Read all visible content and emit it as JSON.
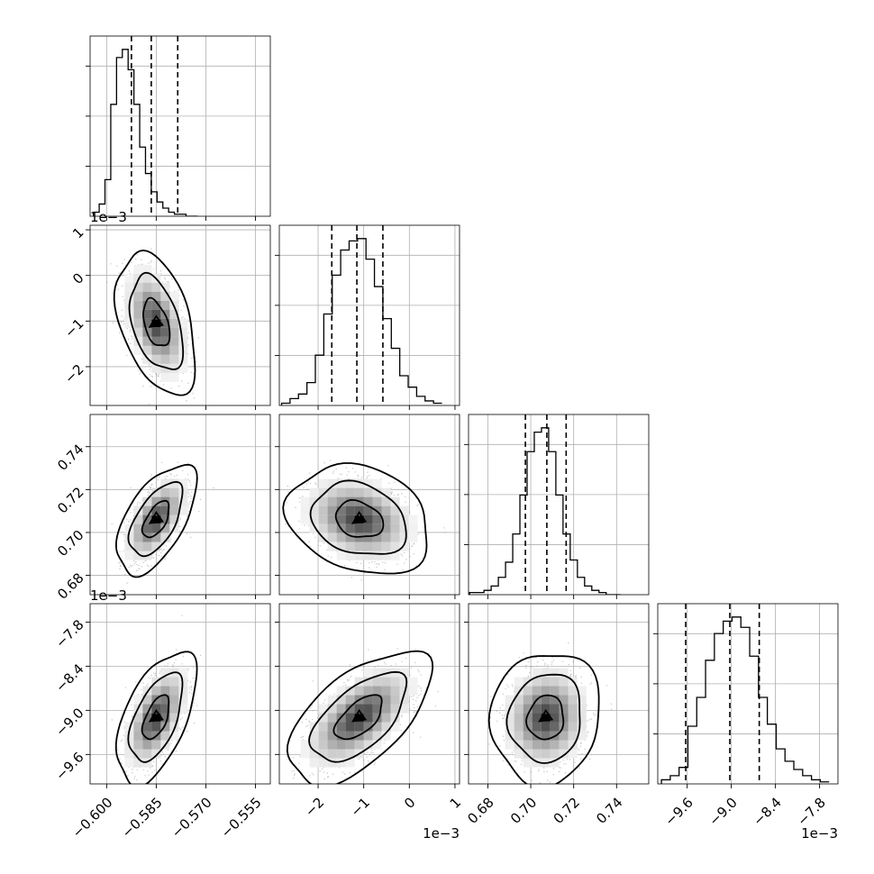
{
  "chart_data": {
    "type": "corner",
    "parameters": [
      {
        "range": [
          -0.605,
          -0.5505
        ],
        "ticks": [
          -0.6,
          -0.585,
          -0.57,
          -0.555
        ],
        "tick_labels": [
          "−0.600",
          "−0.585",
          "−0.570",
          "−0.555"
        ],
        "offset": ""
      },
      {
        "range": [
          -2.85,
          1.1
        ],
        "ticks": [
          -2,
          -1,
          0,
          1
        ],
        "tick_labels": [
          "−2",
          "−1",
          "0",
          "1"
        ],
        "offset": "1e−3"
      },
      {
        "range": [
          0.671,
          0.755
        ],
        "ticks": [
          0.68,
          0.7,
          0.72,
          0.74
        ],
        "tick_labels": [
          "0.68",
          "0.70",
          "0.72",
          "0.74"
        ],
        "offset": ""
      },
      {
        "range": [
          -10.0,
          -7.55
        ],
        "ticks": [
          -9.6,
          -9.0,
          -8.4,
          -7.8
        ],
        "tick_labels": [
          "−9.6",
          "−9.0",
          "−8.4",
          "−7.8"
        ],
        "offset": "1e−3"
      }
    ],
    "marginals": [
      {
        "edges_start": -0.604,
        "bin_width": 0.00175,
        "counts": [
          2,
          6,
          18,
          55,
          78,
          82,
          72,
          55,
          34,
          21,
          12,
          7,
          4,
          2,
          1,
          1,
          0,
          0
        ],
        "quantiles": [
          -0.5925,
          -0.5865,
          -0.5785
        ]
      },
      {
        "edges_start": -2.8,
        "bin_width": 0.185,
        "counts": [
          1,
          3,
          5,
          10,
          22,
          40,
          57,
          68,
          72,
          73,
          64,
          52,
          38,
          25,
          13,
          8,
          4,
          2,
          1
        ],
        "quantiles": [
          -1.7,
          -1.15,
          -0.58
        ]
      },
      {
        "edges_start": 0.6715,
        "bin_width": 0.00335,
        "counts": [
          1,
          1,
          2,
          4,
          8,
          15,
          28,
          46,
          66,
          75,
          77,
          66,
          46,
          28,
          16,
          8,
          4,
          2,
          1,
          0,
          0
        ],
        "quantiles": [
          0.6975,
          0.7075,
          0.7165
        ]
      },
      {
        "edges_start": -9.95,
        "bin_width": 0.12,
        "counts": [
          2,
          4,
          8,
          28,
          42,
          60,
          73,
          79,
          81,
          76,
          62,
          42,
          29,
          17,
          11,
          7,
          4,
          2,
          1
        ],
        "quantiles": [
          -9.62,
          -9.02,
          -8.62
        ]
      }
    ],
    "pairs": [
      {
        "row": 1,
        "col": 0,
        "center": [
          -0.585,
          -1.05
        ],
        "sigma": [
          0.004,
          0.52
        ],
        "rho": -0.42
      },
      {
        "row": 2,
        "col": 0,
        "center": [
          -0.585,
          0.706
        ],
        "sigma": [
          0.004,
          0.0085
        ],
        "rho": 0.58
      },
      {
        "row": 2,
        "col": 1,
        "center": [
          -1.1,
          0.706
        ],
        "sigma": [
          0.52,
          0.0085
        ],
        "rho": -0.22
      },
      {
        "row": 3,
        "col": 0,
        "center": [
          -0.585,
          -9.1
        ],
        "sigma": [
          0.004,
          0.3
        ],
        "rho": 0.55
      },
      {
        "row": 3,
        "col": 1,
        "center": [
          -1.1,
          -9.1
        ],
        "sigma": [
          0.52,
          0.3
        ],
        "rho": 0.6
      },
      {
        "row": 3,
        "col": 2,
        "center": [
          0.707,
          -9.1
        ],
        "sigma": [
          0.0085,
          0.3
        ],
        "rho": 0.08
      }
    ],
    "contour_levels": [
      0.393,
      0.865,
      0.989
    ],
    "grid": true
  }
}
